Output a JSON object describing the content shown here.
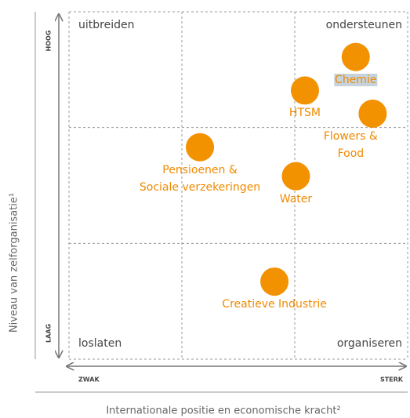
{
  "chart_data": {
    "type": "scatter",
    "xlabel": "Internationale positie en economische kracht²",
    "ylabel": "Niveau van zelforganisatie¹",
    "x_axis_ends": [
      "ZWAK",
      "STERK"
    ],
    "y_axis_ends": [
      "LAAG",
      "HOOG"
    ],
    "quadrant_labels": [
      "uitbreiden",
      "ondersteunen",
      "loslaten",
      "organiseren"
    ],
    "point_labels": [
      "Chemie",
      "HTSM",
      "Flowers & Food",
      "Pensioenen &\nSociale verzekeringen",
      "Water",
      "Creatieve Industrie"
    ],
    "x": [
      2.54,
      2.09,
      2.69,
      1.16,
      2.01,
      1.82
    ],
    "values": [
      2.61,
      2.32,
      2.12,
      1.83,
      1.58,
      0.67
    ],
    "color": "#f39200",
    "highlighted": "Chemie",
    "xlim": [
      0,
      3
    ],
    "ylim": [
      0,
      3
    ]
  }
}
